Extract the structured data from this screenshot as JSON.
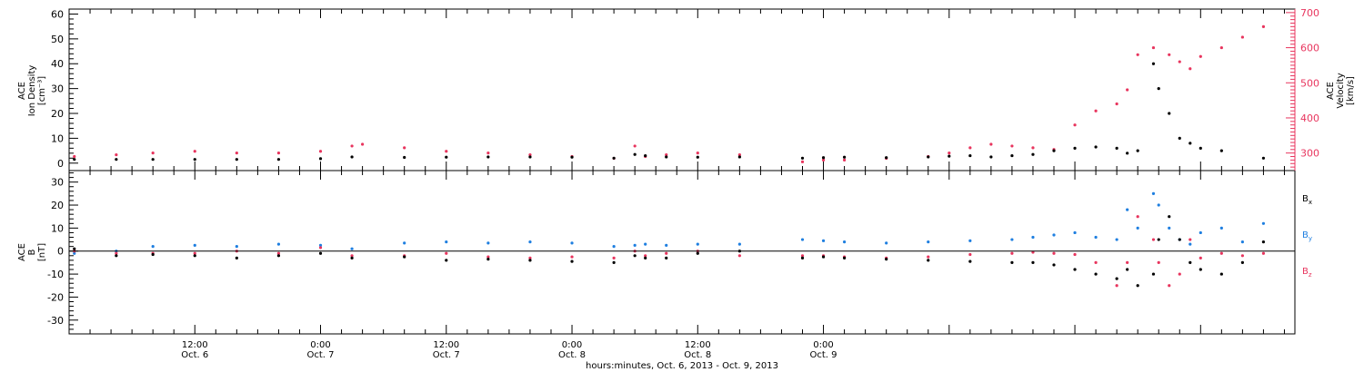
{
  "chart_data": [
    {
      "type": "scatter",
      "panel": "top",
      "ylabel_left": [
        "ACE",
        "Ion Density",
        "[cm⁻³]"
      ],
      "ylabel_right": [
        "ACE",
        "Velocity",
        "[km/s]"
      ],
      "y_left_ticks": [
        "0",
        "10",
        "20",
        "30",
        "40",
        "50",
        "60"
      ],
      "y_left_range": [
        -3,
        62
      ],
      "y_right_ticks": [
        "300",
        "400",
        "500",
        "600",
        "700"
      ],
      "y_right_range": [
        250,
        710
      ],
      "colors": {
        "density": "#000000",
        "velocity": "#e8355e"
      },
      "series": [
        {
          "name": "Ion Density",
          "axis": "left",
          "hours": [
            0.5,
            4.5,
            8,
            12,
            16,
            20,
            24,
            27,
            32,
            36,
            40,
            44,
            48,
            52,
            54,
            55,
            57,
            60,
            64,
            70,
            72,
            74,
            78,
            82,
            84,
            86,
            88,
            90,
            92,
            94,
            96,
            98,
            100,
            101,
            102,
            103.5,
            104,
            105,
            106,
            107,
            108,
            110,
            114
          ],
          "values": [
            1.5,
            1.5,
            1.5,
            1.5,
            1.5,
            1.5,
            1.8,
            2.5,
            2.3,
            2.4,
            2.5,
            2.5,
            2.4,
            2.0,
            3.5,
            3.0,
            2.5,
            2.4,
            2.5,
            2.0,
            2.2,
            2.4,
            2.2,
            2.5,
            2.8,
            3.0,
            2.5,
            3.0,
            3.5,
            5.0,
            6.0,
            6.5,
            6.0,
            4.0,
            5.0,
            40.0,
            30.0,
            20.0,
            10.0,
            8.0,
            6.0,
            5.0,
            2.0
          ]
        },
        {
          "name": "Velocity",
          "axis": "right",
          "hours": [
            0.5,
            4.5,
            8,
            12,
            16,
            20,
            24,
            27,
            28,
            32,
            36,
            40,
            44,
            48,
            52,
            54,
            55,
            57,
            60,
            64,
            70,
            72,
            74,
            78,
            82,
            84,
            86,
            88,
            90,
            92,
            94,
            96,
            98,
            100,
            101,
            102,
            103.5,
            105,
            106,
            107,
            108,
            110,
            112,
            114
          ],
          "values": [
            290,
            295,
            300,
            305,
            300,
            300,
            305,
            320,
            325,
            315,
            305,
            300,
            295,
            290,
            285,
            320,
            290,
            295,
            300,
            295,
            275,
            280,
            280,
            285,
            290,
            300,
            315,
            325,
            320,
            315,
            310,
            380,
            420,
            440,
            480,
            580,
            600,
            580,
            560,
            540,
            575,
            600,
            630,
            660
          ]
        }
      ]
    },
    {
      "type": "scatter",
      "panel": "bottom",
      "ylabel_left": [
        "ACE",
        "B",
        "[nT]"
      ],
      "y_ticks": [
        "-30",
        "-20",
        "-10",
        "0",
        "10",
        "20",
        "30"
      ],
      "y_range": [
        -36,
        35
      ],
      "colors": {
        "Bx": "#000000",
        "By": "#1f7fe0",
        "Bz": "#e8355e"
      },
      "legend": [
        {
          "label": "B",
          "sub": "x",
          "color": "#000000"
        },
        {
          "label": "B",
          "sub": "y",
          "color": "#1f7fe0"
        },
        {
          "label": "B",
          "sub": "z",
          "color": "#e8355e"
        }
      ],
      "legend_placement": "right",
      "series": [
        {
          "name": "Bx",
          "hours": [
            0.5,
            4.5,
            8,
            12,
            16,
            20,
            24,
            27,
            32,
            36,
            40,
            44,
            48,
            52,
            54,
            55,
            57,
            60,
            64,
            70,
            72,
            74,
            78,
            82,
            86,
            90,
            92,
            94,
            96,
            98,
            100,
            101,
            102,
            103.5,
            104,
            105,
            106,
            107,
            108,
            110,
            112,
            114
          ],
          "values": [
            1.0,
            -2.0,
            -1.5,
            -2.0,
            -3.0,
            -2.0,
            -1.0,
            -3.0,
            -2.5,
            -4.0,
            -3.5,
            -4.0,
            -4.5,
            -5.0,
            -2.0,
            -3.0,
            -3.0,
            -1.0,
            0.0,
            -3.0,
            -2.5,
            -3.0,
            -3.5,
            -4.0,
            -4.5,
            -5.0,
            -5.0,
            -6.0,
            -8.0,
            -10.0,
            -12.0,
            -8.0,
            -15.0,
            -10.0,
            5.0,
            15.0,
            5.0,
            -5.0,
            -8.0,
            -10.0,
            -5.0,
            4.0
          ]
        },
        {
          "name": "By",
          "hours": [
            0.5,
            4.5,
            8,
            12,
            16,
            20,
            24,
            27,
            32,
            36,
            40,
            44,
            48,
            52,
            54,
            55,
            57,
            60,
            64,
            70,
            72,
            74,
            78,
            82,
            86,
            90,
            92,
            94,
            96,
            98,
            100,
            101,
            102,
            103.5,
            104,
            105,
            106,
            107,
            108,
            110,
            112,
            114
          ],
          "values": [
            -1.0,
            0.0,
            2.0,
            2.5,
            2.0,
            3.0,
            2.5,
            1.0,
            3.5,
            4.0,
            3.5,
            4.0,
            3.5,
            2.0,
            2.5,
            3.0,
            2.5,
            3.0,
            3.0,
            5.0,
            4.5,
            4.0,
            3.5,
            4.0,
            4.5,
            5.0,
            6.0,
            7.0,
            8.0,
            6.0,
            5.0,
            18.0,
            10.0,
            25.0,
            20.0,
            10.0,
            5.0,
            3.0,
            8.0,
            10.0,
            4.0,
            12.0
          ]
        },
        {
          "name": "Bz",
          "hours": [
            0.5,
            4.5,
            8,
            12,
            16,
            20,
            24,
            27,
            32,
            36,
            40,
            44,
            48,
            52,
            54,
            55,
            57,
            60,
            64,
            70,
            72,
            74,
            78,
            82,
            86,
            90,
            92,
            94,
            96,
            98,
            100,
            101,
            102,
            103.5,
            104,
            105,
            106,
            107,
            108,
            110,
            112,
            114
          ],
          "values": [
            0.0,
            -1.0,
            -1.0,
            -1.0,
            0.0,
            -1.0,
            1.5,
            -2.0,
            -2.0,
            -1.0,
            -2.5,
            -3.0,
            -2.5,
            -3.0,
            0.0,
            -2.0,
            -1.0,
            0.0,
            -2.0,
            -2.0,
            -2.0,
            -2.5,
            -3.0,
            -2.5,
            -1.5,
            -1.0,
            -0.5,
            -1.0,
            -1.5,
            -5.0,
            -15.0,
            -5.0,
            15.0,
            5.0,
            -5.0,
            -15.0,
            -10.0,
            5.0,
            -3.0,
            -1.0,
            -2.0,
            -1.0
          ]
        }
      ]
    }
  ],
  "x_axis": {
    "range_hours": [
      0,
      117
    ],
    "ticks": [
      {
        "hour": 12,
        "time": "12:00",
        "date": "Oct. 6"
      },
      {
        "hour": 24,
        "time": "0:00",
        "date": "Oct. 7"
      },
      {
        "hour": 36,
        "time": "12:00",
        "date": "Oct. 7"
      },
      {
        "hour": 48,
        "time": "0:00",
        "date": "Oct. 8"
      },
      {
        "hour": 60,
        "time": "12:00",
        "date": "Oct. 8"
      },
      {
        "hour": 72,
        "time": "0:00",
        "date": "Oct. 9"
      }
    ],
    "label": "hours:minutes, Oct.  6, 2013 - Oct.  9, 2013"
  }
}
